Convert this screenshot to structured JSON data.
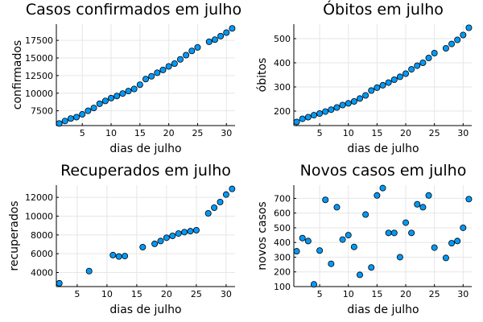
{
  "chart_data": [
    {
      "type": "scatter",
      "title": "Casos confirmados em julho",
      "xlabel": "dias de julho",
      "ylabel": "confirmados",
      "xlim": [
        0.5,
        31.5
      ],
      "ylim": [
        5400,
        19800
      ],
      "xticks": [
        5,
        10,
        15,
        20,
        25,
        30
      ],
      "yticks": [
        7500,
        10000,
        12500,
        15000,
        17500
      ],
      "x": [
        1,
        2,
        3,
        4,
        5,
        6,
        7,
        8,
        9,
        10,
        11,
        12,
        13,
        14,
        15,
        16,
        17,
        18,
        19,
        20,
        21,
        22,
        23,
        24,
        25,
        27,
        28,
        29,
        30,
        31
      ],
      "y": [
        5700,
        6050,
        6400,
        6600,
        7000,
        7500,
        7900,
        8500,
        8900,
        9300,
        9600,
        9950,
        10300,
        10600,
        11200,
        12000,
        12400,
        12900,
        13300,
        13800,
        14200,
        14800,
        15400,
        16000,
        16500,
        17300,
        17600,
        18100,
        18600,
        19200
      ]
    },
    {
      "type": "scatter",
      "title": "Óbitos em julho",
      "xlabel": "dias de julho",
      "ylabel": "óbitos",
      "xlim": [
        0.5,
        31.5
      ],
      "ylim": [
        140,
        560
      ],
      "xticks": [
        5,
        10,
        15,
        20,
        25,
        30
      ],
      "yticks": [
        200,
        300,
        400,
        500
      ],
      "x": [
        1,
        2,
        3,
        4,
        5,
        6,
        7,
        8,
        9,
        10,
        11,
        12,
        13,
        14,
        15,
        16,
        17,
        18,
        19,
        20,
        21,
        22,
        23,
        24,
        25,
        27,
        28,
        29,
        30,
        31
      ],
      "y": [
        155,
        168,
        175,
        183,
        190,
        198,
        206,
        215,
        225,
        232,
        240,
        252,
        265,
        285,
        297,
        307,
        318,
        330,
        342,
        355,
        373,
        388,
        400,
        420,
        440,
        460,
        478,
        495,
        515,
        545
      ]
    },
    {
      "type": "scatter",
      "title": "Recuperados em julho",
      "xlabel": "dias de julho",
      "ylabel": "recuperados",
      "xlim": [
        1.5,
        31.5
      ],
      "ylim": [
        2500,
        13300
      ],
      "xticks": [
        5,
        10,
        15,
        20,
        25,
        30
      ],
      "yticks": [
        4000,
        6000,
        8000,
        10000,
        12000
      ],
      "x": [
        2,
        7,
        11,
        12,
        13,
        16,
        18,
        19,
        20,
        21,
        22,
        23,
        24,
        25,
        27,
        28,
        29,
        30,
        31
      ],
      "y": [
        2850,
        4150,
        5850,
        5700,
        5750,
        6700,
        7050,
        7350,
        7700,
        7900,
        8150,
        8300,
        8400,
        8500,
        10300,
        10900,
        11500,
        12300,
        12900
      ]
    },
    {
      "type": "scatter",
      "title": "Novos casos em julho",
      "xlabel": "dias de julho",
      "ylabel": "novos casos",
      "xlim": [
        0.5,
        31.5
      ],
      "ylim": [
        100,
        790
      ],
      "xticks": [
        5,
        10,
        15,
        20,
        25,
        30
      ],
      "yticks": [
        100,
        200,
        300,
        400,
        500,
        600,
        700
      ],
      "x": [
        1,
        2,
        3,
        4,
        5,
        6,
        7,
        8,
        9,
        10,
        11,
        12,
        13,
        14,
        15,
        16,
        17,
        18,
        19,
        20,
        21,
        22,
        23,
        24,
        25,
        27,
        28,
        29,
        30,
        31
      ],
      "y": [
        340,
        430,
        410,
        115,
        345,
        690,
        255,
        640,
        420,
        450,
        370,
        180,
        590,
        230,
        720,
        770,
        465,
        465,
        300,
        535,
        465,
        660,
        640,
        720,
        365,
        295,
        395,
        410,
        500,
        695
      ]
    }
  ]
}
